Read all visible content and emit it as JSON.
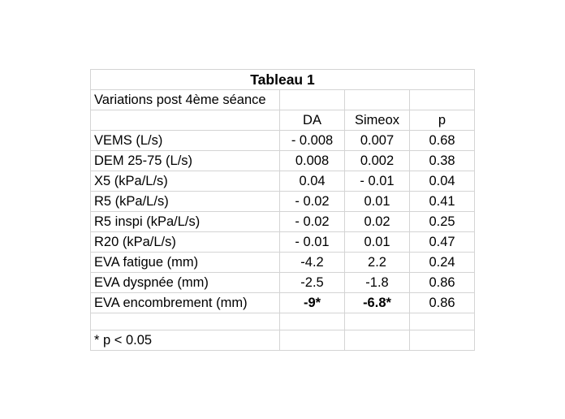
{
  "table": {
    "title": "Tableau 1",
    "subtitle": "Variations post 4ème séance",
    "headers": [
      "",
      "DA",
      "Simeox",
      "p"
    ],
    "rows": [
      {
        "label": "VEMS (L/s)",
        "da": "- 0.008",
        "simeox": "0.007",
        "p": "0.68"
      },
      {
        "label": "DEM 25-75 (L/s)",
        "da": "0.008",
        "simeox": "0.002",
        "p": "0.38"
      },
      {
        "label": "X5 (kPa/L/s)",
        "da": "0.04",
        "simeox": "- 0.01",
        "p": "0.04"
      },
      {
        "label": "R5 (kPa/L/s)",
        "da": "- 0.02",
        "simeox": "0.01",
        "p": "0.41"
      },
      {
        "label": "R5 inspi (kPa/L/s)",
        "da": "- 0.02",
        "simeox": "0.02",
        "p": "0.25"
      },
      {
        "label": "R20 (kPa/L/s)",
        "da": "- 0.01",
        "simeox": "0.01",
        "p": "0.47"
      },
      {
        "label": "EVA fatigue (mm)",
        "da": "-4.2",
        "simeox": "2.2",
        "p": "0.24"
      },
      {
        "label": "EVA dyspnée (mm)",
        "da": "-2.5",
        "simeox": "-1.8",
        "p": "0.86"
      },
      {
        "label": "EVA encombrement (mm)",
        "da": "-9*",
        "simeox": "-6.8*",
        "p": "0.86"
      }
    ],
    "footnote": "* p < 0.05"
  }
}
